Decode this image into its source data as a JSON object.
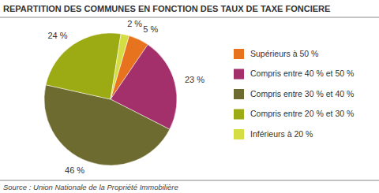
{
  "chart_data": {
    "type": "pie",
    "title": "REPARTITION DES COMMUNES EN FONCTION DES TAUX DE TAXE FONCIERE",
    "source": "Source : Union Nationale de la Propriété Immobilière",
    "categories": [
      "Supérieurs à 50 %",
      "Compris entre 40 % et 50 %",
      "Compris entre 30 % et 40 %",
      "Compris entre 20 % et 30 %",
      "Inférieurs à 20 %"
    ],
    "values": [
      5,
      23,
      46,
      24,
      2
    ],
    "value_labels": [
      "5 %",
      "23 %",
      "46 %",
      "24 %",
      "2 %"
    ],
    "colors": [
      "#e8731e",
      "#a3306a",
      "#6e6b30",
      "#9caa14",
      "#d5dd44"
    ],
    "data_labels": true,
    "legend": "right"
  }
}
